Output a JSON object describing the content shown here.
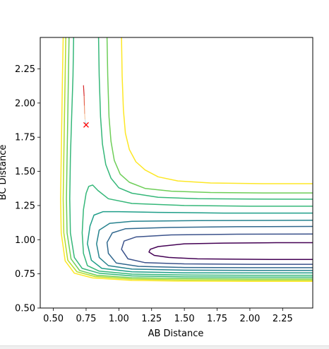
{
  "chart_data": {
    "type": "contour",
    "title": "",
    "xlabel": "AB Distance",
    "ylabel": "BC Distance",
    "xlim": [
      0.4,
      2.48
    ],
    "ylim": [
      0.5,
      2.48
    ],
    "x_ticks": [
      "0.50",
      "0.75",
      "1.00",
      "1.25",
      "1.50",
      "1.75",
      "2.00",
      "2.25"
    ],
    "y_ticks": [
      "0.50",
      "0.75",
      "1.00",
      "1.25",
      "1.50",
      "1.75",
      "2.00",
      "2.25"
    ],
    "grid": false,
    "legend": "none",
    "colormap": "viridis",
    "contours": [
      {
        "color": "#440154",
        "points": [
          [
            2.48,
            0.855
          ],
          [
            2.2,
            0.855
          ],
          [
            1.9,
            0.857
          ],
          [
            1.6,
            0.86
          ],
          [
            1.38,
            0.87
          ],
          [
            1.27,
            0.885
          ],
          [
            1.23,
            0.91
          ],
          [
            1.24,
            0.93
          ],
          [
            1.3,
            0.95
          ],
          [
            1.5,
            0.97
          ],
          [
            1.8,
            0.975
          ],
          [
            2.2,
            0.978
          ],
          [
            2.48,
            0.978
          ]
        ]
      },
      {
        "color": "#3b528b",
        "points": [
          [
            2.48,
            0.82
          ],
          [
            2.0,
            0.82
          ],
          [
            1.5,
            0.823
          ],
          [
            1.2,
            0.832
          ],
          [
            1.07,
            0.86
          ],
          [
            1.02,
            0.93
          ],
          [
            1.04,
            0.99
          ],
          [
            1.13,
            1.02
          ],
          [
            1.4,
            1.035
          ],
          [
            1.9,
            1.04
          ],
          [
            2.48,
            1.042
          ]
        ]
      },
      {
        "color": "#31688e",
        "points": [
          [
            2.48,
            0.795
          ],
          [
            2.0,
            0.795
          ],
          [
            1.5,
            0.797
          ],
          [
            1.15,
            0.805
          ],
          [
            0.98,
            0.83
          ],
          [
            0.92,
            0.9
          ],
          [
            0.91,
            0.98
          ],
          [
            0.95,
            1.05
          ],
          [
            1.05,
            1.08
          ],
          [
            1.4,
            1.09
          ],
          [
            1.9,
            1.095
          ],
          [
            2.48,
            1.097
          ]
        ]
      },
      {
        "color": "#26828e",
        "points": [
          [
            2.48,
            0.775
          ],
          [
            2.0,
            0.775
          ],
          [
            1.5,
            0.777
          ],
          [
            1.1,
            0.785
          ],
          [
            0.92,
            0.81
          ],
          [
            0.85,
            0.87
          ],
          [
            0.83,
            0.97
          ],
          [
            0.85,
            1.07
          ],
          [
            0.93,
            1.12
          ],
          [
            1.1,
            1.135
          ],
          [
            1.6,
            1.14
          ],
          [
            2.48,
            1.142
          ]
        ]
      },
      {
        "color": "#1f9e89",
        "points": [
          [
            2.48,
            0.757
          ],
          [
            2.0,
            0.757
          ],
          [
            1.5,
            0.758
          ],
          [
            1.1,
            0.765
          ],
          [
            0.87,
            0.79
          ],
          [
            0.79,
            0.85
          ],
          [
            0.76,
            0.97
          ],
          [
            0.78,
            1.1
          ],
          [
            0.81,
            1.18
          ],
          [
            0.88,
            1.205
          ],
          [
            1.0,
            1.205
          ],
          [
            1.3,
            1.2
          ],
          [
            1.8,
            1.195
          ],
          [
            2.48,
            1.195
          ]
        ]
      },
      {
        "color": "#35b779",
        "points": [
          [
            2.48,
            0.74
          ],
          [
            2.0,
            0.74
          ],
          [
            1.5,
            0.742
          ],
          [
            1.1,
            0.748
          ],
          [
            0.85,
            0.77
          ],
          [
            0.76,
            0.81
          ],
          [
            0.73,
            0.9
          ],
          [
            0.72,
            1.05
          ],
          [
            0.73,
            1.22
          ],
          [
            0.75,
            1.34
          ],
          [
            0.77,
            1.39
          ],
          [
            0.8,
            1.4
          ],
          [
            0.84,
            1.36
          ],
          [
            0.92,
            1.3
          ],
          [
            1.1,
            1.265
          ],
          [
            1.5,
            1.25
          ],
          [
            2.0,
            1.245
          ],
          [
            2.48,
            1.245
          ]
        ]
      },
      {
        "color": "#35b779",
        "points": [
          [
            0.655,
            2.48
          ],
          [
            0.65,
            2.2
          ],
          [
            0.64,
            1.9
          ],
          [
            0.63,
            1.6
          ],
          [
            0.625,
            1.3
          ],
          [
            0.63,
            1.05
          ],
          [
            0.66,
            0.87
          ],
          [
            0.72,
            0.79
          ],
          [
            0.85,
            0.755
          ],
          [
            1.1,
            0.735
          ],
          [
            1.5,
            0.728
          ],
          [
            2.0,
            0.726
          ],
          [
            2.48,
            0.726
          ]
        ]
      },
      {
        "color": "#6ece58",
        "points": [
          [
            0.62,
            2.48
          ],
          [
            0.615,
            2.2
          ],
          [
            0.61,
            1.9
          ],
          [
            0.605,
            1.6
          ],
          [
            0.6,
            1.3
          ],
          [
            0.605,
            1.05
          ],
          [
            0.635,
            0.86
          ],
          [
            0.7,
            0.775
          ],
          [
            0.83,
            0.74
          ],
          [
            1.1,
            0.722
          ],
          [
            1.5,
            0.716
          ],
          [
            2.0,
            0.714
          ],
          [
            2.48,
            0.714
          ]
        ]
      },
      {
        "color": "#b5de2b",
        "points": [
          [
            0.595,
            2.48
          ],
          [
            0.59,
            2.2
          ],
          [
            0.585,
            1.9
          ],
          [
            0.58,
            1.6
          ],
          [
            0.575,
            1.3
          ],
          [
            0.58,
            1.05
          ],
          [
            0.61,
            0.85
          ],
          [
            0.68,
            0.765
          ],
          [
            0.82,
            0.73
          ],
          [
            1.1,
            0.712
          ],
          [
            1.5,
            0.706
          ],
          [
            2.0,
            0.704
          ],
          [
            2.48,
            0.704
          ]
        ]
      },
      {
        "color": "#fde725",
        "points": [
          [
            0.575,
            2.48
          ],
          [
            0.57,
            2.2
          ],
          [
            0.565,
            1.9
          ],
          [
            0.56,
            1.6
          ],
          [
            0.555,
            1.3
          ],
          [
            0.56,
            1.05
          ],
          [
            0.59,
            0.845
          ],
          [
            0.66,
            0.755
          ],
          [
            0.8,
            0.72
          ],
          [
            1.1,
            0.702
          ],
          [
            1.5,
            0.697
          ],
          [
            2.0,
            0.695
          ],
          [
            2.48,
            0.695
          ]
        ]
      },
      {
        "color": "#35b779",
        "points": [
          [
            0.845,
            2.48
          ],
          [
            0.85,
            2.2
          ],
          [
            0.86,
            1.9
          ],
          [
            0.875,
            1.7
          ],
          [
            0.9,
            1.55
          ],
          [
            0.94,
            1.45
          ],
          [
            1.0,
            1.38
          ],
          [
            1.1,
            1.34
          ],
          [
            1.3,
            1.31
          ],
          [
            1.6,
            1.3
          ],
          [
            2.0,
            1.297
          ],
          [
            2.48,
            1.296
          ]
        ]
      },
      {
        "color": "#6ece58",
        "points": [
          [
            0.91,
            2.48
          ],
          [
            0.915,
            2.2
          ],
          [
            0.925,
            1.9
          ],
          [
            0.94,
            1.72
          ],
          [
            0.965,
            1.58
          ],
          [
            1.01,
            1.48
          ],
          [
            1.08,
            1.42
          ],
          [
            1.2,
            1.375
          ],
          [
            1.4,
            1.355
          ],
          [
            1.7,
            1.345
          ],
          [
            2.1,
            1.342
          ],
          [
            2.48,
            1.342
          ]
        ]
      },
      {
        "color": "#fde725",
        "points": [
          [
            1.02,
            2.48
          ],
          [
            1.025,
            2.2
          ],
          [
            1.035,
            1.95
          ],
          [
            1.05,
            1.78
          ],
          [
            1.08,
            1.66
          ],
          [
            1.13,
            1.57
          ],
          [
            1.2,
            1.51
          ],
          [
            1.3,
            1.46
          ],
          [
            1.45,
            1.43
          ],
          [
            1.7,
            1.415
          ],
          [
            2.1,
            1.41
          ],
          [
            2.48,
            1.41
          ]
        ]
      }
    ],
    "trajectory": {
      "points": [
        [
          0.73,
          2.13
        ],
        [
          0.735,
          2.05
        ],
        [
          0.737,
          1.98
        ],
        [
          0.739,
          1.92
        ],
        [
          0.742,
          1.88
        ],
        [
          0.745,
          1.86
        ],
        [
          0.748,
          1.84
        ]
      ],
      "colors": [
        "#d62728",
        "#e4604a",
        "#ee9a78",
        "#f7caa8",
        "#c9ebf2",
        "#8fd9ec",
        "#5bc8e8"
      ],
      "end_marker": {
        "x": 0.75,
        "y": 1.84,
        "symbol": "x",
        "color": "#ff0000"
      }
    }
  }
}
